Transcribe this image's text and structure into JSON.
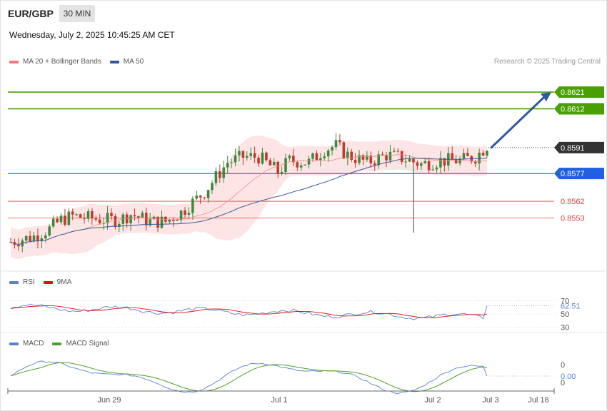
{
  "header": {
    "pair": "EUR/GBP",
    "timeframe": "30 MIN",
    "datetime": "Wednesday, July 2, 2025 10:45:25 AM CET",
    "credit": "Research © 2025 Trading Central"
  },
  "legends": {
    "main": [
      {
        "label": "MA 20 + Bollinger Bands",
        "color": "#f07878"
      },
      {
        "label": "MA 50",
        "color": "#2f5aa0"
      }
    ],
    "rsi": [
      {
        "label": "RSI",
        "color": "#5a7fd6"
      },
      {
        "label": "9MA",
        "color": "#e01010"
      }
    ],
    "macd": [
      {
        "label": "MACD",
        "color": "#5a7fd6"
      },
      {
        "label": "MACD Signal",
        "color": "#4aa02a"
      }
    ]
  },
  "colors": {
    "bull": "#3c8a3c",
    "bear": "#c0392b",
    "band_fill": "#fde0e0",
    "ma20": "#f08a8a",
    "ma50": "#3a5a9a",
    "target_green": "#4aa000",
    "pivot_blue": "#1f5fe0",
    "support_red": "#e04040",
    "arrow": "#2f5aa0"
  },
  "chart_data": [
    {
      "type": "candlestick",
      "name": "price",
      "ylim": [
        0.8525,
        0.8633
      ],
      "current_price": "0.8591",
      "levels": [
        {
          "label": "0.8621",
          "value": 0.8621,
          "kind": "resistance"
        },
        {
          "label": "0.8612",
          "value": 0.8612,
          "kind": "resistance"
        },
        {
          "label": "0.8591",
          "value": 0.8591,
          "kind": "current"
        },
        {
          "label": "0.8577",
          "value": 0.8577,
          "kind": "pivot"
        },
        {
          "label": "0.8562",
          "value": 0.8562,
          "kind": "support"
        },
        {
          "label": "0.8553",
          "value": 0.8553,
          "kind": "support"
        }
      ],
      "x_ticks": [
        "Jun 29",
        "Jul 1",
        "Jul 2",
        "Jul 3",
        "Jul 18"
      ],
      "projection": {
        "from": 0.8591,
        "to": 0.8621
      }
    },
    {
      "type": "line",
      "name": "rsi",
      "ylim": [
        20,
        80
      ],
      "ticks": [
        "70",
        "50",
        "30"
      ],
      "ref_lines": [
        70,
        50,
        30
      ],
      "last_value": "62.51"
    },
    {
      "type": "line",
      "name": "macd",
      "ticks": [
        "0",
        "0"
      ],
      "last_value": "0.00"
    }
  ]
}
